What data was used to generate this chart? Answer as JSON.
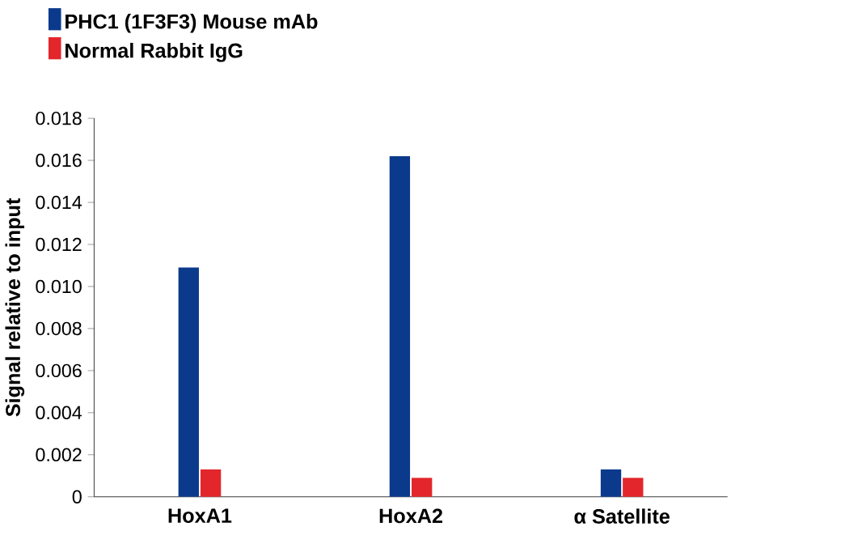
{
  "chart_data": {
    "type": "bar",
    "ylabel": "Signal relative to input",
    "categories": [
      "HoxA1",
      "HoxA2",
      "α Satellite"
    ],
    "series": [
      {
        "name": "PHC1 (1F3F3) Mouse mAb",
        "color": "#0b3a8c",
        "values": [
          0.0109,
          0.0162,
          0.0013
        ]
      },
      {
        "name": "Normal Rabbit IgG",
        "color": "#e3262b",
        "values": [
          0.0013,
          0.0009,
          0.0009
        ]
      }
    ],
    "ylim": [
      0,
      0.018
    ],
    "yticks": [
      {
        "value": 0,
        "label": "0"
      },
      {
        "value": 0.002,
        "label": "0.002"
      },
      {
        "value": 0.004,
        "label": "0.004"
      },
      {
        "value": 0.006,
        "label": "0.006"
      },
      {
        "value": 0.008,
        "label": "0.008"
      },
      {
        "value": 0.01,
        "label": "0.010"
      },
      {
        "value": 0.012,
        "label": "0.012"
      },
      {
        "value": 0.014,
        "label": "0.014"
      },
      {
        "value": 0.016,
        "label": "0.016"
      },
      {
        "value": 0.018,
        "label": "0.018"
      }
    ],
    "grid": false,
    "legend": "top left"
  }
}
